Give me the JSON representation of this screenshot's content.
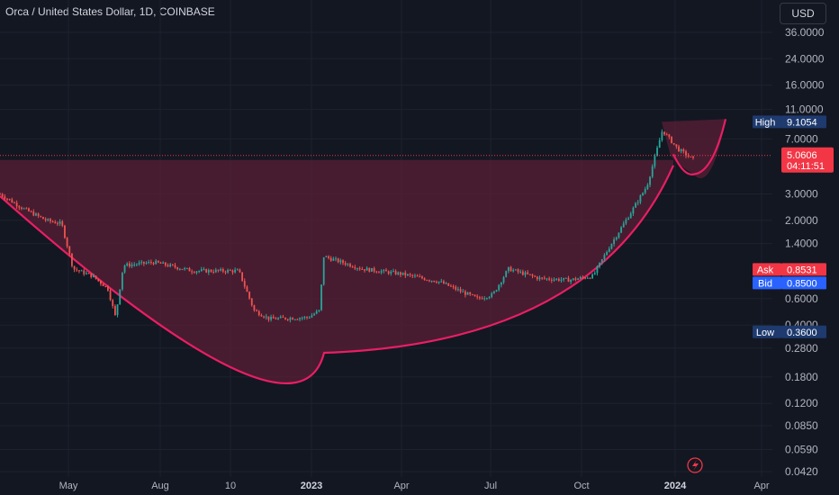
{
  "header": {
    "title": "Orca / United States Dollar, 1D, COINBASE",
    "currency_button": "USD"
  },
  "colors": {
    "background": "#131722",
    "up_candle": "#26a69a",
    "down_candle": "#ef5350",
    "pattern_line": "#e91e63",
    "pattern_fill": "#5a1f35",
    "price_tag": "#f23645",
    "high_low_tag": "#1e3a6e",
    "bid_tag": "#2962ff"
  },
  "chart_data": {
    "type": "candlestick",
    "scale": "log",
    "y_ticks": [
      "36.0000",
      "24.0000",
      "16.0000",
      "11.0000",
      "7.0000",
      "3.0000",
      "2.0000",
      "1.4000",
      "0.6000",
      "0.4000",
      "0.2800",
      "0.1800",
      "0.1200",
      "0.0850",
      "0.0590",
      "0.0420"
    ],
    "x_ticks": [
      {
        "label": "May",
        "bold": false
      },
      {
        "label": "Aug",
        "bold": false
      },
      {
        "label": "10",
        "bold": false
      },
      {
        "label": "2023",
        "bold": true
      },
      {
        "label": "Apr",
        "bold": false
      },
      {
        "label": "Jul",
        "bold": false
      },
      {
        "label": "Oct",
        "bold": false
      },
      {
        "label": "2024",
        "bold": true
      },
      {
        "label": "Apr",
        "bold": false
      }
    ],
    "price_path": [
      {
        "t": 0.0,
        "p": 3.0
      },
      {
        "t": 0.03,
        "p": 2.4
      },
      {
        "t": 0.06,
        "p": 2.0
      },
      {
        "t": 0.08,
        "p": 1.9
      },
      {
        "t": 0.095,
        "p": 0.95
      },
      {
        "t": 0.12,
        "p": 0.85
      },
      {
        "t": 0.14,
        "p": 0.7
      },
      {
        "t": 0.15,
        "p": 0.45
      },
      {
        "t": 0.16,
        "p": 1.0
      },
      {
        "t": 0.2,
        "p": 1.05
      },
      {
        "t": 0.25,
        "p": 0.92
      },
      {
        "t": 0.31,
        "p": 0.92
      },
      {
        "t": 0.33,
        "p": 0.5
      },
      {
        "t": 0.35,
        "p": 0.44
      },
      {
        "t": 0.4,
        "p": 0.45
      },
      {
        "t": 0.415,
        "p": 0.5
      },
      {
        "t": 0.42,
        "p": 1.15
      },
      {
        "t": 0.47,
        "p": 0.95
      },
      {
        "t": 0.52,
        "p": 0.88
      },
      {
        "t": 0.57,
        "p": 0.78
      },
      {
        "t": 0.62,
        "p": 0.6
      },
      {
        "t": 0.64,
        "p": 0.64
      },
      {
        "t": 0.66,
        "p": 0.95
      },
      {
        "t": 0.7,
        "p": 0.82
      },
      {
        "t": 0.74,
        "p": 0.8
      },
      {
        "t": 0.77,
        "p": 0.85
      },
      {
        "t": 0.79,
        "p": 1.3
      },
      {
        "t": 0.82,
        "p": 2.3
      },
      {
        "t": 0.84,
        "p": 3.4
      },
      {
        "t": 0.86,
        "p": 8.0
      },
      {
        "t": 0.88,
        "p": 6.0
      },
      {
        "t": 0.9,
        "p": 5.1
      }
    ],
    "horizontal_level": 5.0606,
    "last_price": "5.0606",
    "countdown": "04:11:51",
    "high": {
      "label": "High",
      "value": "9.1054"
    },
    "low": {
      "label": "Low",
      "value": "0.3600"
    },
    "ask": {
      "label": "Ask",
      "value": "0.8531"
    },
    "bid": {
      "label": "Bid",
      "value": "0.8500"
    },
    "pattern": "cup-and-handle"
  }
}
